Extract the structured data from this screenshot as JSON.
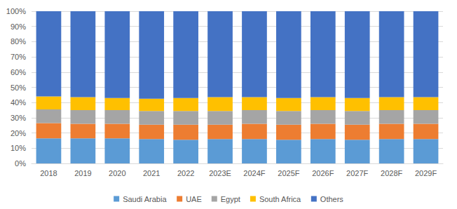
{
  "chart_data": {
    "type": "bar",
    "stacked": true,
    "grid": true,
    "legend": "bottom",
    "categories": [
      "2018",
      "2019",
      "2020",
      "2021",
      "2022",
      "2023E",
      "2024F",
      "2025F",
      "2026F",
      "2027F",
      "2028F",
      "2029F"
    ],
    "series": [
      {
        "name": "Saudi Arabia",
        "color": "#5B9BD5",
        "values": [
          16.5,
          16.5,
          16.5,
          16,
          15.5,
          16,
          16,
          15.5,
          16,
          15.5,
          16,
          16
        ]
      },
      {
        "name": "UAE",
        "color": "#ED7D31",
        "values": [
          10,
          9.5,
          9.5,
          9.5,
          10,
          9.5,
          10,
          10,
          10,
          10,
          10,
          10
        ]
      },
      {
        "name": "Egypt",
        "color": "#A5A5A5",
        "values": [
          9,
          9,
          9,
          9,
          9,
          9,
          9,
          9,
          9,
          9,
          9,
          9
        ]
      },
      {
        "name": "South Africa",
        "color": "#FFC000",
        "values": [
          8.5,
          8.5,
          8,
          8,
          8.5,
          9,
          8.5,
          8.5,
          8.5,
          8.5,
          8.5,
          8.5
        ]
      },
      {
        "name": "Others",
        "color": "#4472C4",
        "values": [
          56,
          56.5,
          57,
          57.5,
          57,
          56.5,
          56.5,
          57,
          56.5,
          57,
          56.5,
          56.5
        ]
      }
    ],
    "ylim": [
      0,
      100
    ],
    "yticks": [
      {
        "value": 0,
        "label": "0%"
      },
      {
        "value": 10,
        "label": "10%"
      },
      {
        "value": 20,
        "label": "20%"
      },
      {
        "value": 30,
        "label": "30%"
      },
      {
        "value": 40,
        "label": "40%"
      },
      {
        "value": 50,
        "label": "50%"
      },
      {
        "value": 60,
        "label": "60%"
      },
      {
        "value": 70,
        "label": "70%"
      },
      {
        "value": 80,
        "label": "80%"
      },
      {
        "value": 90,
        "label": "90%"
      },
      {
        "value": 100,
        "label": "100%"
      }
    ]
  }
}
